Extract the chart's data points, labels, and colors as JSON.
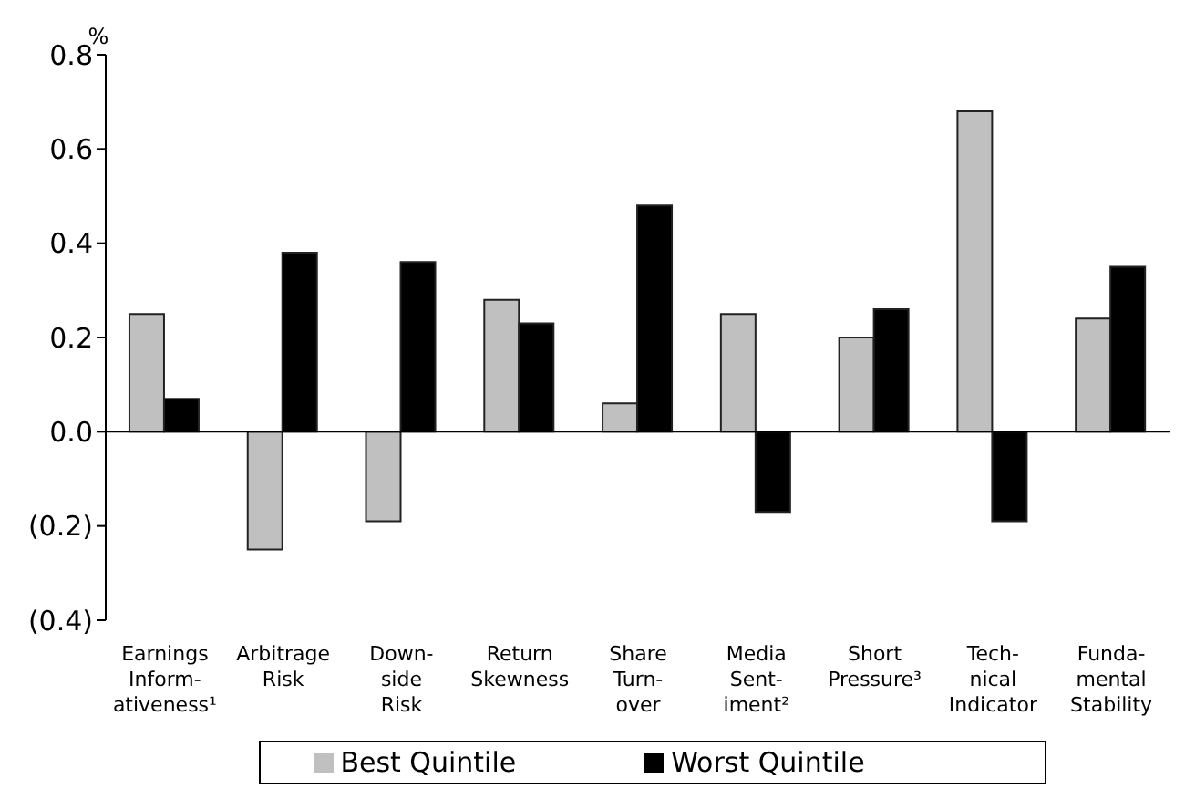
{
  "chart_data": {
    "type": "bar",
    "ylabel": "%",
    "categories": [
      "Earnings\nInform-\nativeness¹",
      "Arbitrage\nRisk",
      "Down-\nside\nRisk",
      "Return\nSkewness",
      "Share\nTurn-\nover",
      "Media\nSent-\niment²",
      "Short\nPressure³",
      "Tech-\nnical\nIndicator",
      "Funda-\nmental\nStability"
    ],
    "series": [
      {
        "name": "Best Quintile",
        "color": "#c0c0c0",
        "values": [
          0.25,
          -0.25,
          -0.19,
          0.28,
          0.06,
          0.25,
          0.2,
          0.68,
          0.24
        ]
      },
      {
        "name": "Worst Quintile",
        "color": "#000000",
        "values": [
          0.07,
          0.38,
          0.36,
          0.23,
          0.48,
          -0.17,
          0.26,
          -0.19,
          0.35
        ]
      }
    ],
    "ylim": [
      -0.4,
      0.8
    ],
    "yticks": [
      {
        "value": -0.4,
        "label": "(0.4)"
      },
      {
        "value": -0.2,
        "label": "(0.2)"
      },
      {
        "value": 0,
        "label": "0.0"
      },
      {
        "value": 0.2,
        "label": "0.2"
      },
      {
        "value": 0.4,
        "label": "0.4"
      },
      {
        "value": 0.6,
        "label": "0.6"
      },
      {
        "value": 0.8,
        "label": "0.8"
      }
    ],
    "legend": "bottom"
  }
}
